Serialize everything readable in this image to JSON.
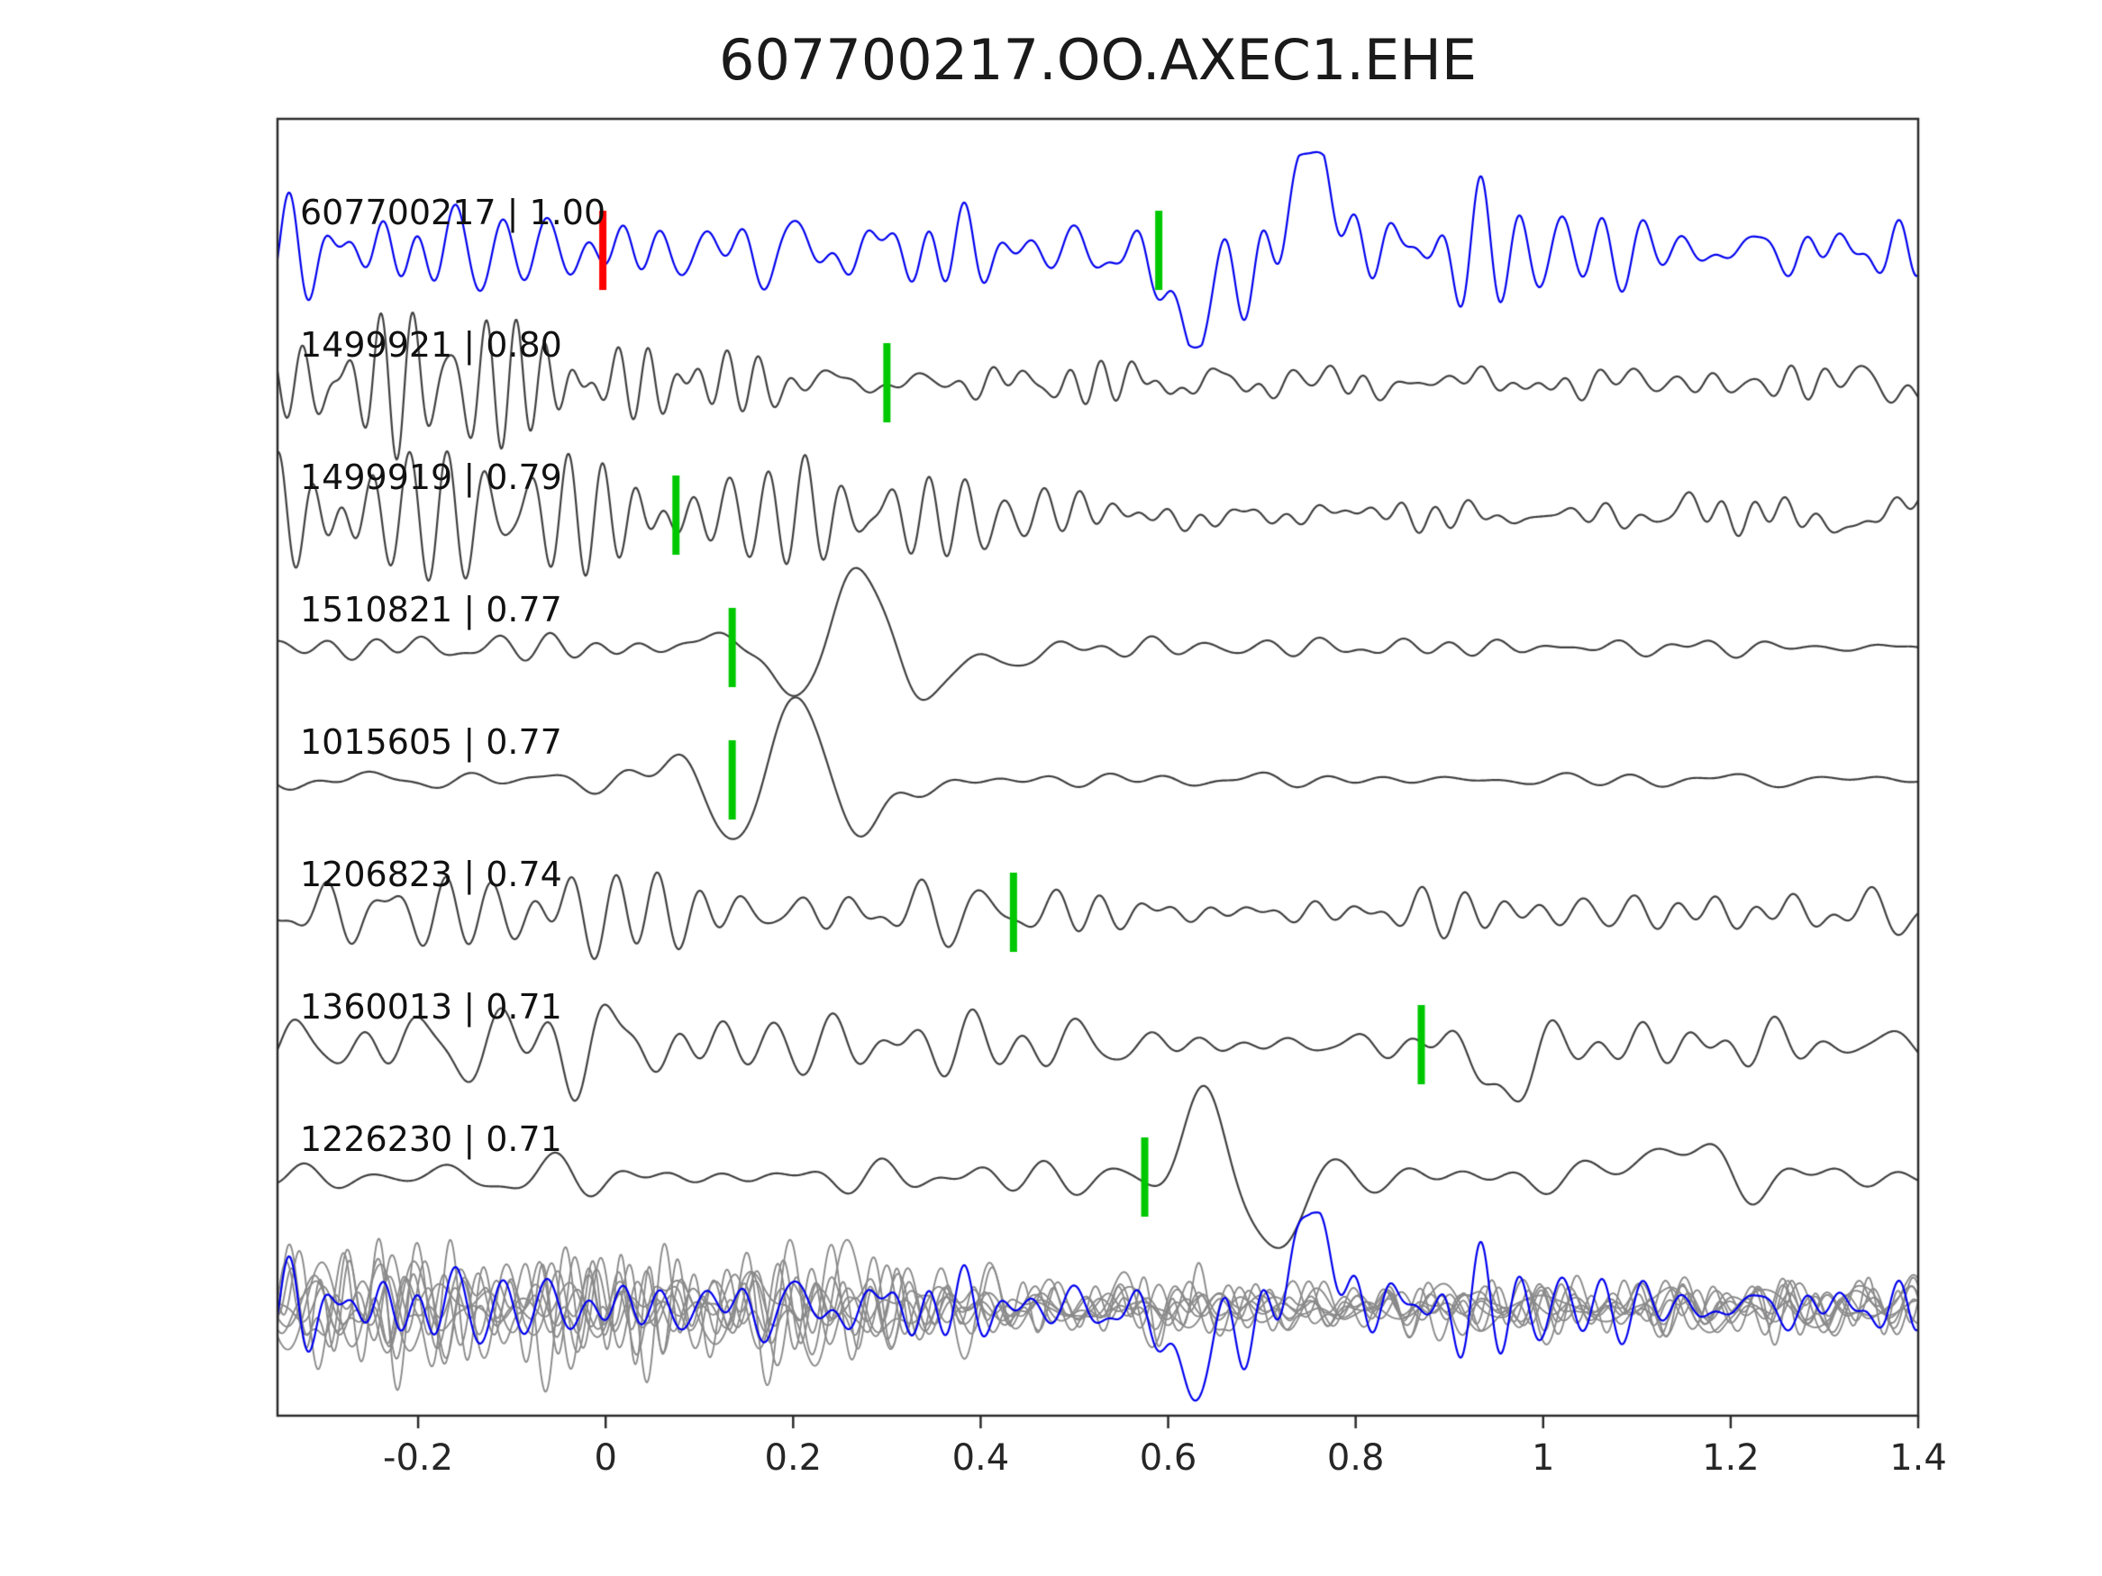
{
  "chart_data": {
    "type": "line",
    "title": "607700217.OO.AXEC1.EHE",
    "xlabel": "",
    "ylabel": "",
    "grid": false,
    "legend_position": "none",
    "xlim": [
      -0.35,
      1.4
    ],
    "x_ticks": [
      "-0.2",
      "0",
      "0.2",
      "0.4",
      "0.6",
      "0.8",
      "1",
      "1.2",
      "1.4"
    ],
    "x_tick_values": [
      -0.2,
      0,
      0.2,
      0.4,
      0.6,
      0.8,
      1,
      1.2,
      1.4
    ],
    "colors": {
      "template": "#0000ee",
      "match": "#3f3f3f",
      "overlay": "#8a8a8a",
      "pick": "#00c800",
      "template_pick": "#ff0000",
      "axis": "#2b2b2b",
      "text": "#1a1a1a"
    },
    "traces": [
      {
        "id": "607700217",
        "similarity": "1.00",
        "label": "607700217 | 1.00",
        "role": "template",
        "picks": [
          {
            "x": -0.003,
            "type": "template_pick"
          },
          {
            "x": 0.59,
            "type": "pick"
          }
        ],
        "gen": {
          "seed": 7,
          "amp": 62,
          "components": [
            {
              "f": 21,
              "k": 36,
              "spread": 1.0,
              "env": [
                [
                  -0.35,
                  0.62
                ],
                [
                  0.5,
                  0.6
                ],
                [
                  0.56,
                  0.85
                ],
                [
                  0.82,
                  0.85
                ],
                [
                  0.95,
                  0.65
                ],
                [
                  1.4,
                  0.6
                ]
              ]
            }
          ],
          "wavelets": [
            {
              "t0": 0.615,
              "f": 4.0,
              "w": 0.04,
              "a": -1.3
            },
            {
              "t0": 0.68,
              "f": 3.5,
              "w": 0.04,
              "a": -0.8
            },
            {
              "t0": 0.75,
              "f": 2.8,
              "w": 0.05,
              "a": 1.5
            }
          ]
        }
      },
      {
        "id": "1499921",
        "similarity": "0.80",
        "label": "1499921 | 0.80",
        "role": "match",
        "picks": [
          {
            "x": 0.3,
            "type": "pick"
          }
        ],
        "gen": {
          "seed": 13,
          "amp": 62,
          "components": [
            {
              "f": 30,
              "k": 36,
              "spread": 0.45,
              "env": [
                [
                  -0.35,
                  1.15
                ],
                [
                  -0.1,
                  1.25
                ],
                [
                  0.05,
                  1.0
                ],
                [
                  0.18,
                  0.55
                ],
                [
                  0.3,
                  0.32
                ],
                [
                  1.4,
                  0.3
                ]
              ]
            },
            {
              "f": 9,
              "k": 18,
              "spread": 1.2,
              "env": [
                [
                  -0.35,
                  0.1
                ],
                [
                  0.35,
                  0.18
                ],
                [
                  1.4,
                  0.22
                ]
              ]
            }
          ]
        }
      },
      {
        "id": "1499919",
        "similarity": "0.79",
        "label": "1499919 | 0.79",
        "role": "match",
        "picks": [
          {
            "x": 0.075,
            "type": "pick"
          }
        ],
        "gen": {
          "seed": 29,
          "amp": 62,
          "components": [
            {
              "f": 27,
              "k": 36,
              "spread": 0.45,
              "env": [
                [
                  -0.35,
                  1.1
                ],
                [
                  0.05,
                  1.05
                ],
                [
                  0.2,
                  0.7
                ],
                [
                  0.4,
                  0.42
                ],
                [
                  0.6,
                  0.32
                ],
                [
                  1.4,
                  0.3
                ]
              ]
            },
            {
              "f": 8,
              "k": 18,
              "spread": 1.2,
              "env": [
                [
                  -0.35,
                  0.08
                ],
                [
                  0.6,
                  0.18
                ],
                [
                  1.4,
                  0.22
                ]
              ]
            }
          ]
        }
      },
      {
        "id": "1510821",
        "similarity": "0.77",
        "label": "1510821 | 0.77",
        "role": "match",
        "picks": [
          {
            "x": 0.135,
            "type": "pick"
          }
        ],
        "gen": {
          "seed": 41,
          "amp": 62,
          "components": [
            {
              "f": 15,
              "k": 30,
              "spread": 1.1,
              "env": [
                [
                  -0.35,
                  0.2
                ],
                [
                  0.0,
                  0.24
                ],
                [
                  0.12,
                  0.16
                ],
                [
                  0.45,
                  0.14
                ],
                [
                  0.65,
                  0.2
                ],
                [
                  1.0,
                  0.16
                ],
                [
                  1.4,
                  0.16
                ]
              ]
            }
          ],
          "wavelets": [
            {
              "t0": 0.27,
              "f": 6.5,
              "w": 0.11,
              "a": 1.45
            },
            {
              "t0": 0.42,
              "f": 4.0,
              "w": 0.05,
              "a": -0.5
            }
          ]
        }
      },
      {
        "id": "1015605",
        "similarity": "0.77",
        "label": "1015605 | 0.77",
        "role": "match",
        "picks": [
          {
            "x": 0.135,
            "type": "pick"
          }
        ],
        "gen": {
          "seed": 53,
          "amp": 62,
          "components": [
            {
              "f": 12,
              "k": 30,
              "spread": 1.1,
              "env": [
                [
                  -0.35,
                  0.16
                ],
                [
                  0.05,
                  0.2
                ],
                [
                  0.15,
                  0.14
                ],
                [
                  0.5,
                  0.12
                ],
                [
                  0.9,
                  0.14
                ],
                [
                  1.4,
                  0.13
                ]
              ]
            }
          ],
          "wavelets": [
            {
              "t0": 0.205,
              "f": 7.0,
              "w": 0.11,
              "a": 1.55
            },
            {
              "t0": 0.34,
              "f": 5.0,
              "w": 0.05,
              "a": -0.5
            }
          ]
        }
      },
      {
        "id": "1206823",
        "similarity": "0.74",
        "label": "1206823 | 0.74",
        "role": "match",
        "picks": [
          {
            "x": 0.435,
            "type": "pick"
          }
        ],
        "gen": {
          "seed": 67,
          "amp": 62,
          "components": [
            {
              "f": 18,
              "k": 36,
              "spread": 1.0,
              "env": [
                [
                  -0.35,
                  0.55
                ],
                [
                  -0.12,
                  0.6
                ],
                [
                  -0.04,
                  1.0
                ],
                [
                  0.06,
                  0.95
                ],
                [
                  0.16,
                  0.55
                ],
                [
                  0.5,
                  0.5
                ],
                [
                  1.1,
                  0.55
                ],
                [
                  1.4,
                  0.5
                ]
              ]
            }
          ]
        }
      },
      {
        "id": "1360013",
        "similarity": "0.71",
        "label": "1360013 | 0.71",
        "role": "match",
        "picks": [
          {
            "x": 0.87,
            "type": "pick"
          }
        ],
        "gen": {
          "seed": 79,
          "amp": 62,
          "components": [
            {
              "f": 16,
              "k": 36,
              "spread": 1.0,
              "env": [
                [
                  -0.35,
                  0.5
                ],
                [
                  -0.12,
                  0.65
                ],
                [
                  0.02,
                  0.7
                ],
                [
                  0.15,
                  0.5
                ],
                [
                  0.85,
                  0.5
                ],
                [
                  0.95,
                  0.7
                ],
                [
                  1.1,
                  0.55
                ],
                [
                  1.4,
                  0.5
                ]
              ]
            }
          ],
          "wavelets": [
            {
              "t0": 0.96,
              "f": 4.5,
              "w": 0.04,
              "a": -0.9
            }
          ]
        }
      },
      {
        "id": "1226230",
        "similarity": "0.71",
        "label": "1226230 | 0.71",
        "role": "match",
        "picks": [
          {
            "x": 0.575,
            "type": "pick"
          }
        ],
        "gen": {
          "seed": 97,
          "amp": 62,
          "components": [
            {
              "f": 12,
              "k": 30,
              "spread": 1.1,
              "env": [
                [
                  -0.35,
                  0.28
                ],
                [
                  0.25,
                  0.3
                ],
                [
                  0.45,
                  0.35
                ],
                [
                  0.55,
                  0.35
                ],
                [
                  0.8,
                  0.4
                ],
                [
                  1.0,
                  0.35
                ],
                [
                  1.4,
                  0.32
                ]
              ]
            }
          ],
          "wavelets": [
            {
              "t0": 0.64,
              "f": 5.0,
              "w": 0.055,
              "a": 1.5
            },
            {
              "t0": 0.705,
              "f": 4.0,
              "w": 0.05,
              "a": -1.2
            },
            {
              "t0": 1.13,
              "f": 4.5,
              "w": 0.045,
              "a": 0.8
            }
          ]
        }
      }
    ],
    "overlay_row": {
      "description": "all matched traces overlaid with template",
      "gray_count": 8,
      "gray_seeds": [
        111,
        222,
        333,
        444,
        555,
        666,
        777,
        888
      ],
      "gray_gen": {
        "amp": 58,
        "f": 19,
        "k": 30,
        "env": [
          [
            -0.35,
            0.95
          ],
          [
            0.2,
            0.9
          ],
          [
            0.35,
            0.6
          ],
          [
            0.7,
            0.52
          ],
          [
            1.4,
            0.48
          ]
        ]
      },
      "blue_amp": 55
    }
  }
}
